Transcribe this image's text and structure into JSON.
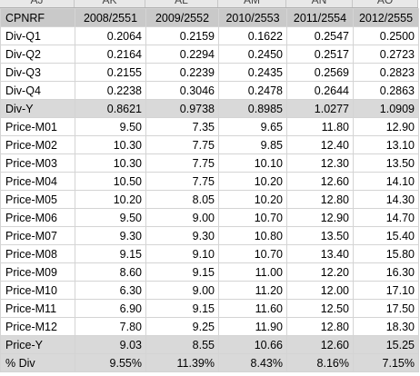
{
  "column_letters": [
    "AJ",
    "AK",
    "AL",
    "AM",
    "AN",
    "AO"
  ],
  "table": {
    "header": [
      "CPNRF",
      "2008/2551",
      "2009/2552",
      "2010/2553",
      "2011/2554",
      "2012/2555"
    ],
    "rows": [
      [
        "Div-Q1",
        "0.2064",
        "0.2159",
        "0.1622",
        "0.2547",
        "0.2500"
      ],
      [
        "Div-Q2",
        "0.2164",
        "0.2294",
        "0.2450",
        "0.2517",
        "0.2723"
      ],
      [
        "Div-Q3",
        "0.2155",
        "0.2239",
        "0.2435",
        "0.2569",
        "0.2823"
      ],
      [
        "Div-Q4",
        "0.2238",
        "0.3046",
        "0.2478",
        "0.2644",
        "0.2863"
      ],
      [
        "Div-Y",
        "0.8621",
        "0.9738",
        "0.8985",
        "1.0277",
        "1.0909"
      ],
      [
        "Price-M01",
        "9.50",
        "7.35",
        "9.65",
        "11.80",
        "12.90"
      ],
      [
        "Price-M02",
        "10.30",
        "7.75",
        "9.85",
        "12.40",
        "13.10"
      ],
      [
        "Price-M03",
        "10.30",
        "7.75",
        "10.10",
        "12.30",
        "13.50"
      ],
      [
        "Price-M04",
        "10.50",
        "7.75",
        "10.20",
        "12.60",
        "14.10"
      ],
      [
        "Price-M05",
        "10.20",
        "8.05",
        "10.20",
        "12.80",
        "14.30"
      ],
      [
        "Price-M06",
        "9.50",
        "9.00",
        "10.70",
        "12.90",
        "14.70"
      ],
      [
        "Price-M07",
        "9.30",
        "9.30",
        "10.80",
        "13.50",
        "15.40"
      ],
      [
        "Price-M08",
        "9.15",
        "9.10",
        "10.70",
        "13.40",
        "15.80"
      ],
      [
        "Price-M09",
        "8.60",
        "9.15",
        "11.00",
        "12.20",
        "16.30"
      ],
      [
        "Price-M10",
        "6.30",
        "9.00",
        "11.20",
        "12.00",
        "17.10"
      ],
      [
        "Price-M11",
        "6.90",
        "9.15",
        "11.60",
        "12.50",
        "17.50"
      ],
      [
        "Price-M12",
        "7.80",
        "9.25",
        "11.90",
        "12.80",
        "18.30"
      ],
      [
        "Price-Y",
        "9.03",
        "8.55",
        "10.66",
        "12.60",
        "15.25"
      ],
      [
        "% Div",
        "9.55%",
        "11.39%",
        "8.43%",
        "8.16%",
        "7.15%"
      ]
    ]
  }
}
